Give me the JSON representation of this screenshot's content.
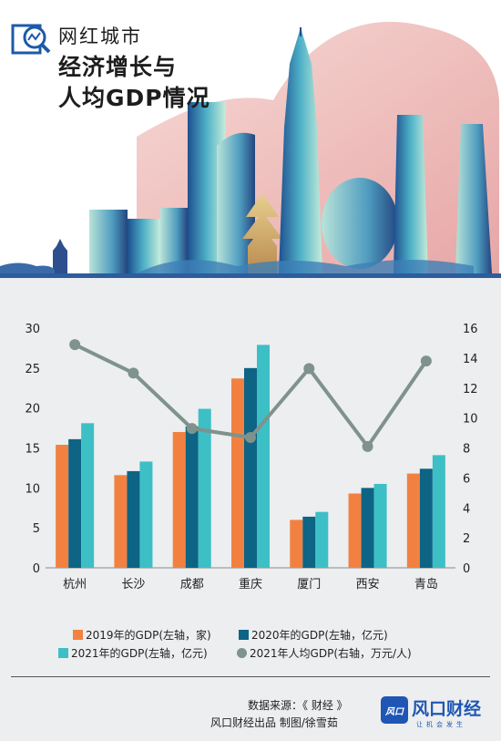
{
  "header": {
    "line1": "网红城市",
    "line2": "经济增长与",
    "line3": "人均GDP情况"
  },
  "legend": [
    {
      "label": "2019年的GDP(左轴，家)",
      "color": "#f28141",
      "shape": "square"
    },
    {
      "label": "2020年的GDP(左轴，亿元)",
      "color": "#0d6484",
      "shape": "square"
    },
    {
      "label": "2021年的GDP(左轴，亿元)",
      "color": "#3dbfc6",
      "shape": "square"
    },
    {
      "label": "2021年人均GDP(右轴，万元/人)",
      "color": "#7f928c",
      "shape": "circle"
    }
  ],
  "chart_data": {
    "type": "bar",
    "categories": [
      "杭州",
      "长沙",
      "成都",
      "重庆",
      "厦门",
      "西安",
      "青岛"
    ],
    "series": [
      {
        "name": "2019年的GDP(左轴，家)",
        "type": "bar",
        "axis": "left",
        "color": "#f28141",
        "values": [
          15.4,
          11.6,
          17.0,
          23.7,
          6.0,
          9.3,
          11.8
        ]
      },
      {
        "name": "2020年的GDP(左轴，亿元)",
        "type": "bar",
        "axis": "left",
        "color": "#0d6484",
        "values": [
          16.1,
          12.1,
          17.7,
          25.0,
          6.4,
          10.0,
          12.4
        ]
      },
      {
        "name": "2021年的GDP(左轴，亿元)",
        "type": "bar",
        "axis": "left",
        "color": "#3dbfc6",
        "values": [
          18.1,
          13.3,
          19.9,
          27.9,
          7.0,
          10.5,
          14.1
        ]
      },
      {
        "name": "2021年人均GDP(右轴，万元/人)",
        "type": "line",
        "axis": "right",
        "color": "#7f928c",
        "values": [
          14.9,
          13.0,
          9.3,
          8.7,
          13.3,
          8.1,
          13.8
        ]
      }
    ],
    "y_left": {
      "min": 0,
      "max": 30,
      "ticks": [
        "0",
        "5",
        "10",
        "15",
        "20",
        "25",
        "30"
      ]
    },
    "y_right": {
      "min": 0,
      "max": 16,
      "ticks": [
        "0",
        "2",
        "4",
        "6",
        "8",
        "10",
        "12",
        "14",
        "16"
      ]
    },
    "grid": false,
    "legend_position": "bottom"
  },
  "footer": {
    "source": "数据来源：《 财经 》",
    "credit": "风口财经出品  制图/徐雪茹",
    "brand_mark": "风口",
    "brand_name": "风口财经",
    "brand_slogan": "让机会发生"
  }
}
